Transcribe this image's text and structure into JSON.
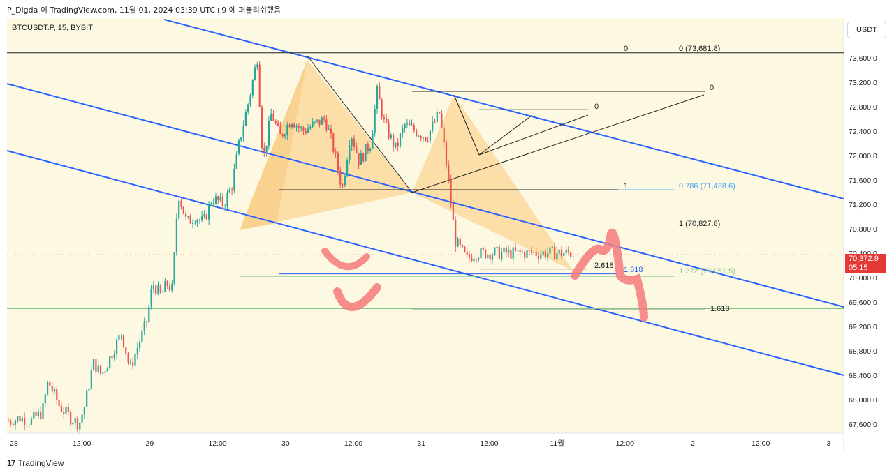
{
  "header": {
    "published": "P_Digda 이 TradingView.com, 11월 01, 2024 03:39 UTC+9 에 퍼블리쉬했음"
  },
  "symbol": "BTCUSDT.P, 15, BYBIT",
  "currency": "USDT",
  "current_price": {
    "value": "70,372.9",
    "timer": "05:15"
  },
  "brand": {
    "name": "TradingView"
  },
  "colors": {
    "chart_bg": "#fdf8e1",
    "up": "#26a69a",
    "down": "#ef5350",
    "channel": "#2962ff",
    "pattern_fill": "#f9c87a",
    "green_line": "#81c784",
    "red_scribble": "#f47a7a"
  },
  "chart_data": {
    "type": "candlestick",
    "y_axis": {
      "range": [
        67450,
        74250
      ],
      "ticks": [
        "73,600.0",
        "73,200.0",
        "72,800.0",
        "72,400.0",
        "72,000.0",
        "71,600.0",
        "71,200.0",
        "70,800.0",
        "70,400.0",
        "70,000.0",
        "69,600.0",
        "69,200.0",
        "68,800.0",
        "68,400.0",
        "68,000.0",
        "67,600.0"
      ]
    },
    "x_axis": {
      "ticks": [
        "28",
        "12:00",
        "29",
        "12:00",
        "30",
        "12:00",
        "31",
        "12:00",
        "11월",
        "12:00",
        "2",
        "12:00",
        "3"
      ]
    },
    "price_path": [
      [
        0,
        67650
      ],
      [
        0.02,
        67700
      ],
      [
        0.04,
        67650
      ],
      [
        0.06,
        67800
      ],
      [
        0.07,
        68300
      ],
      [
        0.09,
        67900
      ],
      [
        0.11,
        67700
      ],
      [
        0.125,
        67600
      ],
      [
        0.135,
        67900
      ],
      [
        0.15,
        68600
      ],
      [
        0.165,
        68400
      ],
      [
        0.18,
        68700
      ],
      [
        0.2,
        69100
      ],
      [
        0.215,
        68500
      ],
      [
        0.23,
        68900
      ],
      [
        0.245,
        69300
      ],
      [
        0.255,
        69900
      ],
      [
        0.27,
        69700
      ],
      [
        0.28,
        69900
      ],
      [
        0.29,
        69800
      ],
      [
        0.3,
        71400
      ],
      [
        0.315,
        70900
      ],
      [
        0.33,
        71000
      ],
      [
        0.345,
        70900
      ],
      [
        0.36,
        71300
      ],
      [
        0.38,
        71200
      ],
      [
        0.395,
        71500
      ],
      [
        0.41,
        72300
      ],
      [
        0.425,
        72900
      ],
      [
        0.44,
        73600
      ],
      [
        0.45,
        71900
      ],
      [
        0.465,
        72700
      ],
      [
        0.48,
        72300
      ],
      [
        0.5,
        72600
      ],
      [
        0.52,
        72400
      ],
      [
        0.54,
        72500
      ],
      [
        0.56,
        72600
      ],
      [
        0.575,
        72100
      ],
      [
        0.59,
        71450
      ],
      [
        0.605,
        72400
      ],
      [
        0.62,
        71900
      ],
      [
        0.64,
        72200
      ],
      [
        0.652,
        73050
      ],
      [
        0.665,
        72500
      ],
      [
        0.685,
        72100
      ],
      [
        0.7,
        72500
      ],
      [
        0.72,
        72400
      ],
      [
        0.74,
        72300
      ],
      [
        0.762,
        72700
      ],
      [
        0.775,
        71800
      ],
      [
        0.79,
        70600
      ],
      [
        0.81,
        70300
      ],
      [
        0.825,
        70400
      ]
    ],
    "levels": [
      {
        "label_left": "0",
        "label_right": "0 (73,681.8)",
        "price": 73681.8
      },
      {
        "label": "0.786 (71,438.6)",
        "price": 71438.6
      },
      {
        "label_left": "1",
        "price": 71438.6
      },
      {
        "label": "1 (70,827.8)",
        "price": 70827.8
      },
      {
        "label": "1.272 (70,051.5)",
        "price": 70051.5
      },
      {
        "label": "1.618",
        "price": 69480
      },
      {
        "label": "2.618",
        "price": 70140
      },
      {
        "label": "1.618",
        "price": 70090
      },
      {
        "label": "0",
        "price": 73050
      },
      {
        "label": "0",
        "price": 72750
      }
    ]
  }
}
